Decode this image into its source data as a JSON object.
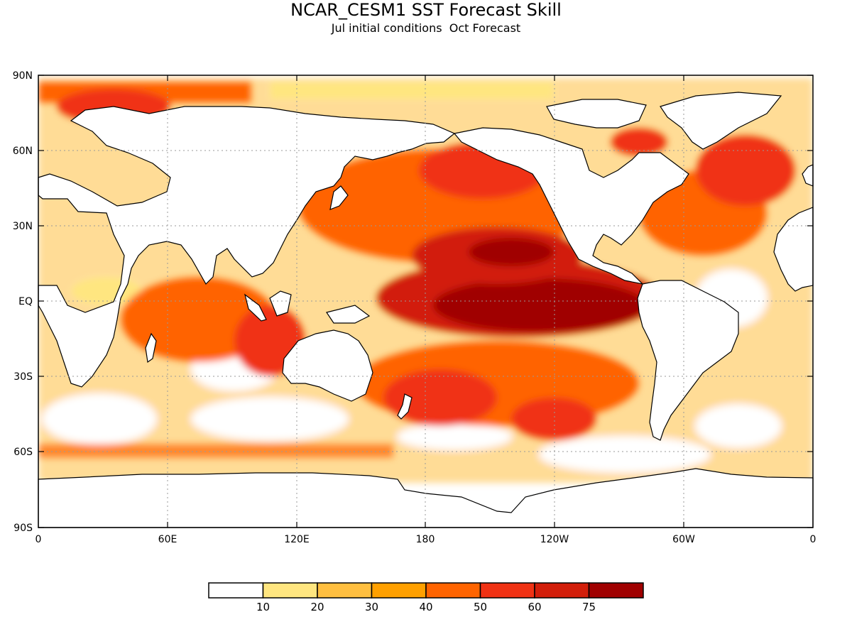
{
  "title": "NCAR_CESM1 SST Forecast Skill",
  "subtitle": "Jul initial conditions  Oct Forecast",
  "lat_ticks": [
    "90N",
    "60N",
    "30N",
    "EQ",
    "30S",
    "60S",
    "90S"
  ],
  "lon_ticks": [
    "0",
    "60E",
    "120E",
    "180",
    "120W",
    "60W",
    "0"
  ],
  "colorbar": {
    "colors": [
      "#ffffff",
      "#ffe680",
      "#ffbf40",
      "#ffa000",
      "#ff6400",
      "#f03214",
      "#d21e0a",
      "#a00000"
    ],
    "labels": [
      "10",
      "20",
      "30",
      "40",
      "50",
      "60",
      "75"
    ]
  }
}
